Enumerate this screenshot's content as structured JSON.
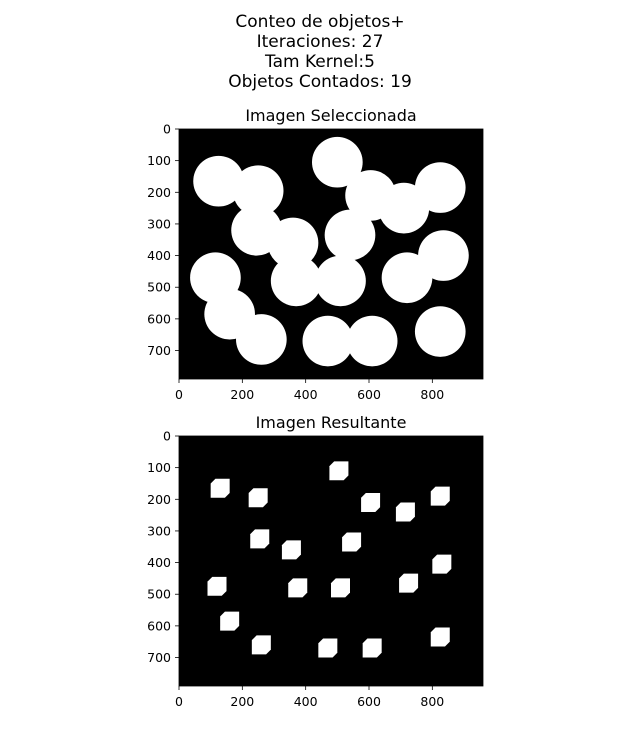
{
  "figure": {
    "title_lines": [
      "Conteo de objetos+",
      "Iteraciones: 27",
      "Tam Kernel:5",
      "Objetos Contados: 19"
    ]
  },
  "colors": {
    "background": "#000000",
    "foreground": "#ffffff"
  },
  "chart_data": [
    {
      "type": "heatmap",
      "title": "Imagen Seleccionada",
      "xlim": [
        0,
        960
      ],
      "ylim": [
        790,
        0
      ],
      "xticks": [
        0,
        200,
        400,
        600,
        800
      ],
      "yticks": [
        0,
        100,
        200,
        300,
        400,
        500,
        600,
        700
      ],
      "shape": "circle",
      "radius": 80,
      "objects": [
        {
          "x": 125,
          "y": 165
        },
        {
          "x": 250,
          "y": 195
        },
        {
          "x": 500,
          "y": 105
        },
        {
          "x": 605,
          "y": 210
        },
        {
          "x": 710,
          "y": 250
        },
        {
          "x": 825,
          "y": 185
        },
        {
          "x": 245,
          "y": 320
        },
        {
          "x": 360,
          "y": 360
        },
        {
          "x": 540,
          "y": 335
        },
        {
          "x": 835,
          "y": 400
        },
        {
          "x": 115,
          "y": 470
        },
        {
          "x": 370,
          "y": 480
        },
        {
          "x": 510,
          "y": 480
        },
        {
          "x": 720,
          "y": 470
        },
        {
          "x": 160,
          "y": 585
        },
        {
          "x": 260,
          "y": 665
        },
        {
          "x": 470,
          "y": 670
        },
        {
          "x": 610,
          "y": 670
        },
        {
          "x": 825,
          "y": 640
        }
      ]
    },
    {
      "type": "heatmap",
      "title": "Imagen Resultante",
      "xlim": [
        0,
        960
      ],
      "ylim": [
        790,
        0
      ],
      "xticks": [
        0,
        200,
        400,
        600,
        800
      ],
      "yticks": [
        0,
        100,
        200,
        300,
        400,
        500,
        600,
        700
      ],
      "shape": "square",
      "side": 60,
      "objects": [
        {
          "x": 130,
          "y": 165
        },
        {
          "x": 250,
          "y": 195
        },
        {
          "x": 505,
          "y": 110
        },
        {
          "x": 605,
          "y": 210
        },
        {
          "x": 715,
          "y": 240
        },
        {
          "x": 825,
          "y": 190
        },
        {
          "x": 255,
          "y": 325
        },
        {
          "x": 355,
          "y": 360
        },
        {
          "x": 545,
          "y": 335
        },
        {
          "x": 830,
          "y": 405
        },
        {
          "x": 120,
          "y": 475
        },
        {
          "x": 375,
          "y": 480
        },
        {
          "x": 510,
          "y": 480
        },
        {
          "x": 725,
          "y": 465
        },
        {
          "x": 160,
          "y": 585
        },
        {
          "x": 260,
          "y": 660
        },
        {
          "x": 470,
          "y": 670
        },
        {
          "x": 610,
          "y": 670
        },
        {
          "x": 825,
          "y": 635
        }
      ]
    }
  ]
}
